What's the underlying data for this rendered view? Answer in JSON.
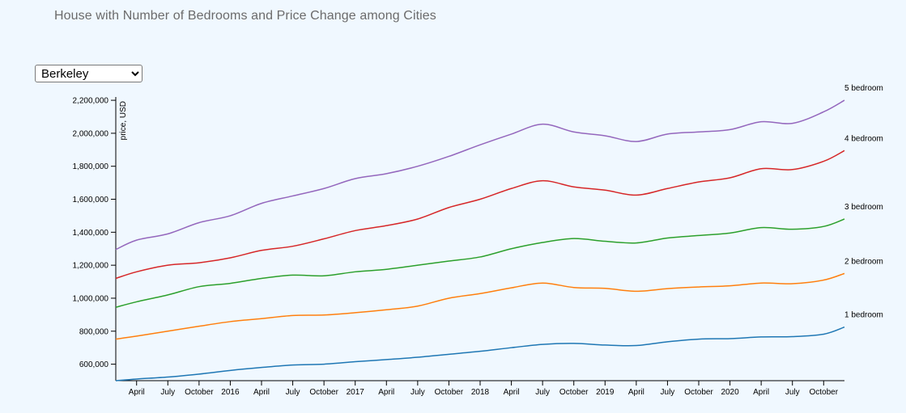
{
  "title": "House with Number of Bedrooms and Price Change among Cities",
  "controls": {
    "city_options": [
      "Berkeley"
    ],
    "city_selected": "Berkeley"
  },
  "chart_data": {
    "type": "line",
    "title": "House with Number of Bedrooms and Price Change among Cities",
    "xlabel": "",
    "ylabel": "price, USD",
    "x_start": "2015-02",
    "x_end": "2020-12",
    "ylim": [
      500000,
      2220000
    ],
    "y_ticks": [
      600000,
      800000,
      1000000,
      1200000,
      1400000,
      1600000,
      1800000,
      2000000,
      2200000
    ],
    "y_tick_labels": [
      "600,000",
      "800,000",
      "1,000,000",
      "1,200,000",
      "1,400,000",
      "1,600,000",
      "1,800,000",
      "2,000,000",
      "2,200,000"
    ],
    "x_ticks": [
      {
        "date": "2015-04",
        "label": "April"
      },
      {
        "date": "2015-07",
        "label": "July"
      },
      {
        "date": "2015-10",
        "label": "October"
      },
      {
        "date": "2016-01",
        "label": "2016"
      },
      {
        "date": "2016-04",
        "label": "April"
      },
      {
        "date": "2016-07",
        "label": "July"
      },
      {
        "date": "2016-10",
        "label": "October"
      },
      {
        "date": "2017-01",
        "label": "2017"
      },
      {
        "date": "2017-04",
        "label": "April"
      },
      {
        "date": "2017-07",
        "label": "July"
      },
      {
        "date": "2017-10",
        "label": "October"
      },
      {
        "date": "2018-01",
        "label": "2018"
      },
      {
        "date": "2018-04",
        "label": "April"
      },
      {
        "date": "2018-07",
        "label": "July"
      },
      {
        "date": "2018-10",
        "label": "October"
      },
      {
        "date": "2019-01",
        "label": "2019"
      },
      {
        "date": "2019-04",
        "label": "April"
      },
      {
        "date": "2019-07",
        "label": "July"
      },
      {
        "date": "2019-10",
        "label": "October"
      },
      {
        "date": "2020-01",
        "label": "2020"
      },
      {
        "date": "2020-04",
        "label": "April"
      },
      {
        "date": "2020-07",
        "label": "July"
      },
      {
        "date": "2020-10",
        "label": "October"
      }
    ],
    "series": [
      {
        "name": "1 bedroom",
        "color": "#1f77b4",
        "points": [
          [
            "2015-02",
            500000
          ],
          [
            "2015-04",
            510000
          ],
          [
            "2015-07",
            522000
          ],
          [
            "2015-10",
            540000
          ],
          [
            "2016-01",
            562000
          ],
          [
            "2016-04",
            580000
          ],
          [
            "2016-07",
            595000
          ],
          [
            "2016-10",
            600000
          ],
          [
            "2017-01",
            615000
          ],
          [
            "2017-04",
            628000
          ],
          [
            "2017-07",
            642000
          ],
          [
            "2017-10",
            660000
          ],
          [
            "2018-01",
            678000
          ],
          [
            "2018-04",
            700000
          ],
          [
            "2018-07",
            720000
          ],
          [
            "2018-10",
            726000
          ],
          [
            "2019-01",
            716000
          ],
          [
            "2019-04",
            713000
          ],
          [
            "2019-07",
            736000
          ],
          [
            "2019-10",
            752000
          ],
          [
            "2020-01",
            755000
          ],
          [
            "2020-04",
            765000
          ],
          [
            "2020-07",
            767000
          ],
          [
            "2020-10",
            782000
          ],
          [
            "2020-12",
            825000
          ]
        ]
      },
      {
        "name": "2 bedroom",
        "color": "#ff7f0e",
        "points": [
          [
            "2015-02",
            752000
          ],
          [
            "2015-04",
            770000
          ],
          [
            "2015-07",
            800000
          ],
          [
            "2015-10",
            830000
          ],
          [
            "2016-01",
            858000
          ],
          [
            "2016-04",
            876000
          ],
          [
            "2016-07",
            895000
          ],
          [
            "2016-10",
            898000
          ],
          [
            "2017-01",
            912000
          ],
          [
            "2017-04",
            930000
          ],
          [
            "2017-07",
            952000
          ],
          [
            "2017-10",
            1000000
          ],
          [
            "2018-01",
            1028000
          ],
          [
            "2018-04",
            1063000
          ],
          [
            "2018-07",
            1092000
          ],
          [
            "2018-10",
            1065000
          ],
          [
            "2019-01",
            1060000
          ],
          [
            "2019-04",
            1042000
          ],
          [
            "2019-07",
            1058000
          ],
          [
            "2019-10",
            1068000
          ],
          [
            "2020-01",
            1075000
          ],
          [
            "2020-04",
            1092000
          ],
          [
            "2020-07",
            1088000
          ],
          [
            "2020-10",
            1110000
          ],
          [
            "2020-12",
            1150000
          ]
        ]
      },
      {
        "name": "3 bedroom",
        "color": "#2ca02c",
        "points": [
          [
            "2015-02",
            945000
          ],
          [
            "2015-04",
            978000
          ],
          [
            "2015-07",
            1020000
          ],
          [
            "2015-10",
            1070000
          ],
          [
            "2016-01",
            1090000
          ],
          [
            "2016-04",
            1120000
          ],
          [
            "2016-07",
            1140000
          ],
          [
            "2016-10",
            1136000
          ],
          [
            "2017-01",
            1160000
          ],
          [
            "2017-04",
            1175000
          ],
          [
            "2017-07",
            1200000
          ],
          [
            "2017-10",
            1225000
          ],
          [
            "2018-01",
            1250000
          ],
          [
            "2018-04",
            1300000
          ],
          [
            "2018-07",
            1338000
          ],
          [
            "2018-10",
            1362000
          ],
          [
            "2019-01",
            1345000
          ],
          [
            "2019-04",
            1335000
          ],
          [
            "2019-07",
            1365000
          ],
          [
            "2019-10",
            1380000
          ],
          [
            "2020-01",
            1395000
          ],
          [
            "2020-04",
            1428000
          ],
          [
            "2020-07",
            1418000
          ],
          [
            "2020-10",
            1435000
          ],
          [
            "2020-12",
            1480000
          ]
        ]
      },
      {
        "name": "4 bedroom",
        "color": "#d62728",
        "points": [
          [
            "2015-02",
            1120000
          ],
          [
            "2015-04",
            1160000
          ],
          [
            "2015-07",
            1200000
          ],
          [
            "2015-10",
            1215000
          ],
          [
            "2016-01",
            1245000
          ],
          [
            "2016-04",
            1290000
          ],
          [
            "2016-07",
            1315000
          ],
          [
            "2016-10",
            1360000
          ],
          [
            "2017-01",
            1410000
          ],
          [
            "2017-04",
            1440000
          ],
          [
            "2017-07",
            1480000
          ],
          [
            "2017-10",
            1550000
          ],
          [
            "2018-01",
            1600000
          ],
          [
            "2018-04",
            1665000
          ],
          [
            "2018-07",
            1712000
          ],
          [
            "2018-10",
            1675000
          ],
          [
            "2019-01",
            1655000
          ],
          [
            "2019-04",
            1625000
          ],
          [
            "2019-07",
            1665000
          ],
          [
            "2019-10",
            1705000
          ],
          [
            "2020-01",
            1730000
          ],
          [
            "2020-04",
            1785000
          ],
          [
            "2020-07",
            1780000
          ],
          [
            "2020-10",
            1830000
          ],
          [
            "2020-12",
            1895000
          ]
        ]
      },
      {
        "name": "5 bedroom",
        "color": "#9467bd",
        "points": [
          [
            "2015-02",
            1295000
          ],
          [
            "2015-04",
            1352000
          ],
          [
            "2015-07",
            1390000
          ],
          [
            "2015-10",
            1458000
          ],
          [
            "2016-01",
            1500000
          ],
          [
            "2016-04",
            1575000
          ],
          [
            "2016-07",
            1620000
          ],
          [
            "2016-10",
            1665000
          ],
          [
            "2017-01",
            1725000
          ],
          [
            "2017-04",
            1755000
          ],
          [
            "2017-07",
            1800000
          ],
          [
            "2017-10",
            1860000
          ],
          [
            "2018-01",
            1930000
          ],
          [
            "2018-04",
            1995000
          ],
          [
            "2018-07",
            2055000
          ],
          [
            "2018-10",
            2008000
          ],
          [
            "2019-01",
            1985000
          ],
          [
            "2019-04",
            1950000
          ],
          [
            "2019-07",
            1995000
          ],
          [
            "2019-10",
            2008000
          ],
          [
            "2020-01",
            2022000
          ],
          [
            "2020-04",
            2070000
          ],
          [
            "2020-07",
            2060000
          ],
          [
            "2020-10",
            2130000
          ],
          [
            "2020-12",
            2200000
          ]
        ]
      }
    ]
  }
}
